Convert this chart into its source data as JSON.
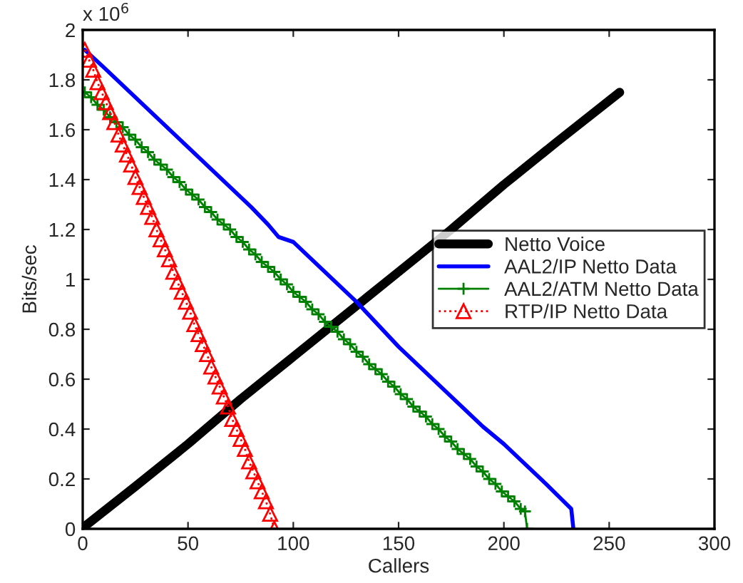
{
  "chart_data": {
    "type": "line",
    "xlabel": "Callers",
    "ylabel": "Bits/sec",
    "annotations": [
      "x 10$^{6}$"
    ],
    "xlim": [
      0,
      300
    ],
    "xticks": [
      0,
      50,
      100,
      150,
      200,
      250,
      300
    ],
    "ylim": [
      0,
      2
    ],
    "yticks": [
      0,
      0.2,
      0.4,
      0.6,
      0.8,
      1,
      1.2,
      1.4,
      1.6,
      1.8,
      2
    ],
    "grid": false,
    "legend": "center right",
    "series": [
      {
        "name": "Netto Voice",
        "color": "#000000",
        "marker": "none",
        "line_style": "solid",
        "x": [
          1,
          25,
          50,
          75,
          100,
          125,
          150,
          175,
          200,
          225,
          255
        ],
        "values": [
          0.01,
          0.17,
          0.34,
          0.52,
          0.69,
          0.86,
          1.03,
          1.2,
          1.38,
          1.55,
          1.75
        ]
      },
      {
        "name": "AAL2/IP Netto Data",
        "color": "#0000ff",
        "marker": "none",
        "line_style": "solid",
        "x": [
          1,
          10,
          20,
          30,
          40,
          50,
          60,
          70,
          80,
          88,
          93,
          100,
          110,
          120,
          130,
          140,
          150,
          160,
          170,
          180,
          190,
          200,
          210,
          220,
          232,
          233
        ],
        "values": [
          1.92,
          1.85,
          1.77,
          1.69,
          1.61,
          1.53,
          1.45,
          1.37,
          1.29,
          1.22,
          1.17,
          1.15,
          1.07,
          0.99,
          0.91,
          0.82,
          0.73,
          0.65,
          0.57,
          0.49,
          0.41,
          0.34,
          0.26,
          0.18,
          0.08,
          0.0
        ]
      },
      {
        "name": "AAL2/ATM Netto Data",
        "color": "#008000",
        "marker": "cross",
        "line_style": "solid",
        "x": [
          1,
          4,
          7,
          10,
          13,
          16,
          19,
          22,
          25,
          28,
          31,
          34,
          37,
          40,
          43,
          46,
          49,
          52,
          55,
          58,
          61,
          64,
          67,
          70,
          73,
          76,
          79,
          82,
          85,
          88,
          91,
          94,
          97,
          100,
          103,
          106,
          109,
          112,
          115,
          118,
          121,
          124,
          127,
          130,
          133,
          136,
          139,
          142,
          145,
          148,
          151,
          154,
          157,
          160,
          163,
          166,
          169,
          172,
          175,
          178,
          181,
          184,
          187,
          190,
          193,
          196,
          199,
          202,
          205,
          208,
          210,
          211
        ],
        "values": [
          1.75,
          1.73,
          1.7,
          1.68,
          1.65,
          1.63,
          1.61,
          1.58,
          1.56,
          1.53,
          1.51,
          1.48,
          1.46,
          1.44,
          1.41,
          1.39,
          1.36,
          1.34,
          1.32,
          1.29,
          1.27,
          1.24,
          1.22,
          1.2,
          1.17,
          1.15,
          1.12,
          1.1,
          1.07,
          1.05,
          1.03,
          1.0,
          0.98,
          0.95,
          0.93,
          0.91,
          0.88,
          0.86,
          0.83,
          0.81,
          0.79,
          0.76,
          0.74,
          0.71,
          0.69,
          0.66,
          0.64,
          0.62,
          0.59,
          0.57,
          0.54,
          0.52,
          0.49,
          0.47,
          0.45,
          0.42,
          0.4,
          0.37,
          0.35,
          0.32,
          0.3,
          0.28,
          0.25,
          0.23,
          0.2,
          0.18,
          0.15,
          0.13,
          0.11,
          0.08,
          0.07,
          0.0
        ]
      },
      {
        "name": "RTP/IP Netto Data",
        "color": "#ff0000",
        "marker": "triangle",
        "line_style": "dotted",
        "x": [
          1,
          3,
          5,
          7,
          9,
          11,
          13,
          15,
          17,
          19,
          21,
          23,
          25,
          27,
          29,
          31,
          33,
          35,
          37,
          39,
          41,
          43,
          45,
          47,
          49,
          51,
          53,
          55,
          57,
          59,
          61,
          63,
          65,
          67,
          69,
          71,
          73,
          75,
          77,
          79,
          81,
          83,
          85,
          87,
          89,
          91
        ],
        "values": [
          1.92,
          1.88,
          1.84,
          1.79,
          1.75,
          1.71,
          1.67,
          1.63,
          1.58,
          1.54,
          1.5,
          1.46,
          1.41,
          1.37,
          1.33,
          1.29,
          1.25,
          1.2,
          1.16,
          1.12,
          1.08,
          1.03,
          0.99,
          0.95,
          0.91,
          0.87,
          0.82,
          0.78,
          0.74,
          0.7,
          0.65,
          0.61,
          0.57,
          0.53,
          0.49,
          0.44,
          0.4,
          0.36,
          0.32,
          0.27,
          0.23,
          0.19,
          0.15,
          0.11,
          0.06,
          0.0
        ]
      }
    ]
  }
}
